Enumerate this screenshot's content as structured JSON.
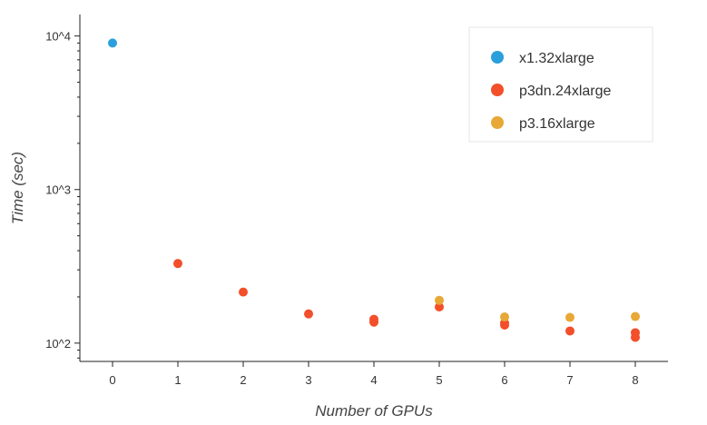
{
  "chart_data": {
    "type": "scatter",
    "xlabel": "Number of GPUs",
    "ylabel": "Time (sec)",
    "x_ticks": [
      0,
      1,
      2,
      3,
      4,
      5,
      6,
      7,
      8
    ],
    "xlim": [
      -0.5,
      8.5
    ],
    "y_scale": "log",
    "y_ticks": [
      {
        "value": 100,
        "label": "10^2"
      },
      {
        "value": 1000,
        "label": "10^3"
      },
      {
        "value": 10000,
        "label": "10^4"
      }
    ],
    "ylim": [
      76,
      13800
    ],
    "grid": false,
    "legend_position": "top-right",
    "series": [
      {
        "name": "x1.32xlarge",
        "color": "#2b9fdc",
        "points": [
          {
            "x": 0,
            "y": 9000
          }
        ]
      },
      {
        "name": "p3dn.24xlarge",
        "color": "#f24f2a",
        "points": [
          {
            "x": 1,
            "y": 330
          },
          {
            "x": 2,
            "y": 215
          },
          {
            "x": 3,
            "y": 155
          },
          {
            "x": 4,
            "y": 143
          },
          {
            "x": 4,
            "y": 137
          },
          {
            "x": 5,
            "y": 172
          },
          {
            "x": 6,
            "y": 135
          },
          {
            "x": 6,
            "y": 131
          },
          {
            "x": 7,
            "y": 120
          },
          {
            "x": 8,
            "y": 117
          },
          {
            "x": 8,
            "y": 109
          }
        ]
      },
      {
        "name": "p3.16xlarge",
        "color": "#e8a836",
        "points": [
          {
            "x": 5,
            "y": 190
          },
          {
            "x": 6,
            "y": 148
          },
          {
            "x": 7,
            "y": 147
          },
          {
            "x": 8,
            "y": 149
          }
        ]
      }
    ]
  }
}
